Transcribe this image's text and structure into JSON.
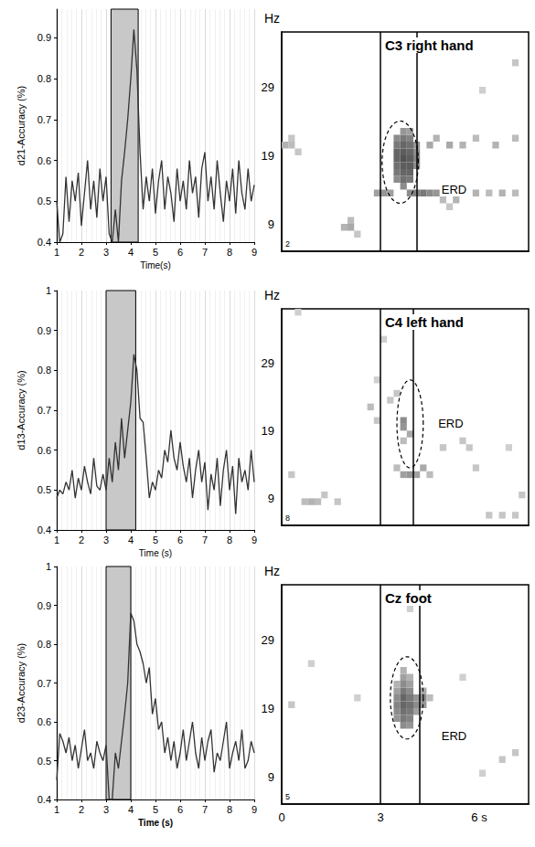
{
  "chart_data": [
    {
      "type": "line",
      "y_axis_label": "d21-Accuracy (%)",
      "x_axis_label": "Time(s)",
      "color": "#333333",
      "x": [
        1,
        1.125,
        1.25,
        1.375,
        1.5,
        1.625,
        1.75,
        1.875,
        2,
        2.125,
        2.25,
        2.375,
        2.5,
        2.625,
        2.75,
        2.875,
        3,
        3.125,
        3.25,
        3.375,
        3.5,
        3.625,
        3.75,
        3.875,
        4,
        4.125,
        4.25,
        4.375,
        4.5,
        4.625,
        4.75,
        4.875,
        5,
        5.125,
        5.25,
        5.375,
        5.5,
        5.625,
        5.75,
        5.875,
        6,
        6.125,
        6.25,
        6.375,
        6.5,
        6.625,
        6.75,
        6.875,
        7,
        7.125,
        7.25,
        7.375,
        7.5,
        7.625,
        7.75,
        7.875,
        8,
        8.125,
        8.25,
        8.375,
        8.5,
        8.625,
        8.75,
        8.875,
        9
      ],
      "values": [
        0.5,
        0.4,
        0.42,
        0.56,
        0.45,
        0.55,
        0.5,
        0.57,
        0.44,
        0.52,
        0.6,
        0.48,
        0.55,
        0.46,
        0.58,
        0.5,
        0.56,
        0.42,
        0.4,
        0.48,
        0.4,
        0.55,
        0.62,
        0.7,
        0.8,
        0.92,
        0.82,
        0.62,
        0.48,
        0.56,
        0.5,
        0.58,
        0.47,
        0.55,
        0.6,
        0.48,
        0.56,
        0.52,
        0.45,
        0.58,
        0.5,
        0.55,
        0.48,
        0.6,
        0.52,
        0.56,
        0.46,
        0.58,
        0.62,
        0.5,
        0.56,
        0.48,
        0.6,
        0.52,
        0.45,
        0.55,
        0.5,
        0.58,
        0.47,
        0.6,
        0.52,
        0.48,
        0.58,
        0.5,
        0.54
      ],
      "xlim": [
        1,
        9
      ],
      "ylim": [
        0.4,
        0.97
      ],
      "xticks": [
        1,
        2,
        3,
        4,
        5,
        6,
        7,
        8,
        9
      ],
      "yticks": [
        0.4,
        0.5,
        0.6,
        0.7,
        0.8,
        0.9
      ],
      "grid": true,
      "shade": [
        3.2,
        4.3
      ]
    },
    {
      "type": "heatmap",
      "title": "C3 right hand",
      "corner_label": "2",
      "y_axis_label": "Hz",
      "color": "#404040",
      "xlim": [
        0,
        7.5
      ],
      "ylim": [
        5,
        37
      ],
      "yticks": [
        9,
        19,
        29
      ],
      "tick_labels": "y",
      "grid": false,
      "x_step": 0.2,
      "y_step": 1,
      "clim": [
        0,
        1
      ],
      "cue_lines": [
        3,
        4.1
      ],
      "annotation": {
        "text": "ERD",
        "x": 4.8,
        "y": 14,
        "ellipse": {
          "x": 3.6,
          "y": 18,
          "rx": 0.55,
          "ry": 6
        }
      },
      "cells": [
        [
          0,
          20,
          0.4
        ],
        [
          0.2,
          20,
          0.35
        ],
        [
          0.2,
          21,
          0.3
        ],
        [
          0.4,
          19,
          0.3
        ],
        [
          1.8,
          8,
          0.4
        ],
        [
          2.0,
          8,
          0.45
        ],
        [
          2.0,
          9,
          0.35
        ],
        [
          2.2,
          7,
          0.3
        ],
        [
          2.8,
          13,
          0.5
        ],
        [
          3.0,
          13,
          0.55
        ],
        [
          3.2,
          13,
          0.5
        ],
        [
          3.4,
          15,
          0.6
        ],
        [
          3.4,
          16,
          0.7
        ],
        [
          3.4,
          17,
          0.75
        ],
        [
          3.4,
          18,
          0.8
        ],
        [
          3.4,
          19,
          0.8
        ],
        [
          3.4,
          20,
          0.7
        ],
        [
          3.4,
          21,
          0.6
        ],
        [
          3.6,
          14,
          0.6
        ],
        [
          3.6,
          15,
          0.75
        ],
        [
          3.6,
          16,
          0.8
        ],
        [
          3.6,
          17,
          0.85
        ],
        [
          3.6,
          18,
          0.9
        ],
        [
          3.6,
          19,
          0.85
        ],
        [
          3.6,
          20,
          0.8
        ],
        [
          3.6,
          21,
          0.7
        ],
        [
          3.6,
          22,
          0.55
        ],
        [
          3.8,
          15,
          0.7
        ],
        [
          3.8,
          16,
          0.8
        ],
        [
          3.8,
          17,
          0.85
        ],
        [
          3.8,
          18,
          0.85
        ],
        [
          3.8,
          19,
          0.8
        ],
        [
          3.8,
          20,
          0.75
        ],
        [
          3.8,
          21,
          0.65
        ],
        [
          3.8,
          22,
          0.5
        ],
        [
          4.0,
          17,
          0.6
        ],
        [
          4.0,
          18,
          0.65
        ],
        [
          4.0,
          19,
          0.6
        ],
        [
          4.0,
          20,
          0.55
        ],
        [
          3.8,
          13,
          0.6
        ],
        [
          4.0,
          13,
          0.65
        ],
        [
          4.2,
          13,
          0.7
        ],
        [
          4.4,
          13,
          0.6
        ],
        [
          4.6,
          13,
          0.55
        ],
        [
          4.8,
          13,
          0.5
        ],
        [
          5.0,
          13,
          0.45
        ],
        [
          5.2,
          12,
          0.4
        ],
        [
          5.4,
          13,
          0.45
        ],
        [
          5.8,
          13,
          0.4
        ],
        [
          6.2,
          13,
          0.35
        ],
        [
          6.6,
          13,
          0.4
        ],
        [
          7.0,
          13,
          0.35
        ],
        [
          4.4,
          20,
          0.45
        ],
        [
          4.6,
          21,
          0.4
        ],
        [
          5.0,
          20,
          0.45
        ],
        [
          5.4,
          20,
          0.4
        ],
        [
          5.8,
          21,
          0.35
        ],
        [
          6.4,
          20,
          0.4
        ],
        [
          7.0,
          21,
          0.35
        ],
        [
          5.0,
          11,
          0.3
        ],
        [
          4.8,
          12,
          0.35
        ],
        [
          6.0,
          28,
          0.25
        ],
        [
          7.0,
          32,
          0.3
        ]
      ]
    },
    {
      "type": "line",
      "y_axis_label": "d13-Accuracy (%)",
      "x_axis_label": "Time (s)",
      "color": "#333333",
      "x": [
        1,
        1.125,
        1.25,
        1.375,
        1.5,
        1.625,
        1.75,
        1.875,
        2,
        2.125,
        2.25,
        2.375,
        2.5,
        2.625,
        2.75,
        2.875,
        3,
        3.125,
        3.25,
        3.375,
        3.5,
        3.625,
        3.75,
        3.875,
        4,
        4.125,
        4.25,
        4.375,
        4.5,
        4.625,
        4.75,
        4.875,
        5,
        5.125,
        5.25,
        5.375,
        5.5,
        5.625,
        5.75,
        5.875,
        6,
        6.125,
        6.25,
        6.375,
        6.5,
        6.625,
        6.75,
        6.875,
        7,
        7.125,
        7.25,
        7.375,
        7.5,
        7.625,
        7.75,
        7.875,
        8,
        8.125,
        8.25,
        8.375,
        8.5,
        8.625,
        8.75,
        8.875,
        9
      ],
      "values": [
        0.48,
        0.5,
        0.49,
        0.52,
        0.5,
        0.55,
        0.48,
        0.53,
        0.5,
        0.56,
        0.52,
        0.49,
        0.58,
        0.51,
        0.5,
        0.54,
        0.5,
        0.58,
        0.52,
        0.62,
        0.55,
        0.68,
        0.58,
        0.65,
        0.72,
        0.84,
        0.8,
        0.68,
        0.67,
        0.58,
        0.48,
        0.52,
        0.5,
        0.55,
        0.53,
        0.6,
        0.57,
        0.65,
        0.58,
        0.55,
        0.62,
        0.56,
        0.52,
        0.58,
        0.48,
        0.55,
        0.6,
        0.52,
        0.57,
        0.45,
        0.54,
        0.5,
        0.58,
        0.46,
        0.55,
        0.6,
        0.5,
        0.56,
        0.44,
        0.58,
        0.52,
        0.55,
        0.5,
        0.6,
        0.52
      ],
      "xlim": [
        1,
        9
      ],
      "ylim": [
        0.4,
        1
      ],
      "xticks": [
        1,
        2,
        3,
        4,
        5,
        6,
        7,
        8,
        9
      ],
      "yticks": [
        0.4,
        0.5,
        0.6,
        0.7,
        0.8,
        0.9,
        1
      ],
      "grid": true,
      "shade": [
        3,
        4.2
      ]
    },
    {
      "type": "heatmap",
      "title": "C4 left hand",
      "corner_label": "8",
      "y_axis_label": "Hz",
      "color": "#404040",
      "xlim": [
        0,
        7.5
      ],
      "ylim": [
        5,
        37
      ],
      "yticks": [
        9,
        19,
        29
      ],
      "tick_labels": "y",
      "grid": false,
      "x_step": 0.2,
      "y_step": 1,
      "clim": [
        0,
        1
      ],
      "cue_lines": [
        3,
        4.0
      ],
      "annotation": {
        "text": "ERD",
        "x": 4.7,
        "y": 20,
        "ellipse": {
          "x": 3.9,
          "y": 20,
          "rx": 0.4,
          "ry": 6.5
        }
      },
      "cells": [
        [
          0.2,
          12,
          0.3
        ],
        [
          0.6,
          8,
          0.35
        ],
        [
          0.8,
          8,
          0.4
        ],
        [
          1.0,
          8,
          0.35
        ],
        [
          1.2,
          9,
          0.3
        ],
        [
          1.6,
          8,
          0.3
        ],
        [
          2.6,
          22,
          0.35
        ],
        [
          2.8,
          20,
          0.3
        ],
        [
          2.8,
          26,
          0.25
        ],
        [
          3.2,
          23,
          0.3
        ],
        [
          3.4,
          24,
          0.3
        ],
        [
          3.6,
          19,
          0.55
        ],
        [
          3.6,
          20,
          0.6
        ],
        [
          3.8,
          18,
          0.45
        ],
        [
          3.6,
          17,
          0.35
        ],
        [
          3.4,
          13,
          0.35
        ],
        [
          3.6,
          12,
          0.5
        ],
        [
          3.8,
          12,
          0.55
        ],
        [
          4.0,
          12,
          0.5
        ],
        [
          4.2,
          13,
          0.45
        ],
        [
          4.4,
          12,
          0.35
        ],
        [
          4.8,
          16,
          0.3
        ],
        [
          5.4,
          17,
          0.3
        ],
        [
          5.6,
          16,
          0.3
        ],
        [
          5.8,
          13,
          0.3
        ],
        [
          6.2,
          6,
          0.3
        ],
        [
          6.6,
          6,
          0.3
        ],
        [
          7.0,
          6,
          0.3
        ],
        [
          6.8,
          16,
          0.25
        ],
        [
          7.2,
          9,
          0.3
        ],
        [
          0.4,
          36,
          0.25
        ],
        [
          3.0,
          32,
          0.25
        ]
      ]
    },
    {
      "type": "line",
      "y_axis_label": "d23-Accuracy (%)",
      "x_axis_label": "Time (s)",
      "color": "#333333",
      "x": [
        1,
        1.125,
        1.25,
        1.375,
        1.5,
        1.625,
        1.75,
        1.875,
        2,
        2.125,
        2.25,
        2.375,
        2.5,
        2.625,
        2.75,
        2.875,
        3,
        3.125,
        3.25,
        3.375,
        3.5,
        3.625,
        3.75,
        3.875,
        4,
        4.125,
        4.25,
        4.375,
        4.5,
        4.625,
        4.75,
        4.875,
        5,
        5.125,
        5.25,
        5.375,
        5.5,
        5.625,
        5.75,
        5.875,
        6,
        6.125,
        6.25,
        6.375,
        6.5,
        6.625,
        6.75,
        6.875,
        7,
        7.125,
        7.25,
        7.375,
        7.5,
        7.625,
        7.75,
        7.875,
        8,
        8.125,
        8.25,
        8.375,
        8.5,
        8.625,
        8.75,
        8.875,
        9
      ],
      "values": [
        0.45,
        0.57,
        0.55,
        0.52,
        0.56,
        0.5,
        0.54,
        0.48,
        0.53,
        0.58,
        0.5,
        0.52,
        0.48,
        0.55,
        0.52,
        0.5,
        0.54,
        0.4,
        0.4,
        0.52,
        0.48,
        0.55,
        0.62,
        0.7,
        0.88,
        0.86,
        0.8,
        0.78,
        0.75,
        0.7,
        0.74,
        0.62,
        0.66,
        0.58,
        0.6,
        0.52,
        0.56,
        0.5,
        0.55,
        0.48,
        0.52,
        0.58,
        0.5,
        0.55,
        0.6,
        0.52,
        0.48,
        0.56,
        0.5,
        0.55,
        0.58,
        0.47,
        0.52,
        0.5,
        0.55,
        0.6,
        0.48,
        0.52,
        0.55,
        0.5,
        0.58,
        0.48,
        0.5,
        0.55,
        0.52
      ],
      "xlim": [
        1,
        9
      ],
      "ylim": [
        0.4,
        1
      ],
      "xticks": [
        1,
        2,
        3,
        4,
        5,
        6,
        7,
        8,
        9
      ],
      "yticks": [
        0.4,
        0.5,
        0.6,
        0.7,
        0.8,
        0.9,
        1
      ],
      "grid": true,
      "shade": [
        3,
        4
      ]
    },
    {
      "type": "heatmap",
      "title": "Cz foot",
      "corner_label": "5",
      "y_axis_label": "Hz",
      "color": "#404040",
      "xlim": [
        0,
        7.5
      ],
      "ylim": [
        5,
        37
      ],
      "xticks": [
        0,
        3,
        {
          "value": 6,
          "label": "6 s"
        }
      ],
      "yticks": [
        9,
        19,
        29
      ],
      "grid": false,
      "x_step": 0.2,
      "y_step": 1,
      "clim": [
        0,
        1
      ],
      "cue_lines": [
        3,
        4.2
      ],
      "annotation": {
        "text": "ERD",
        "x": 4.8,
        "y": 15,
        "ellipse": {
          "x": 3.8,
          "y": 20.5,
          "rx": 0.5,
          "ry": 6
        }
      },
      "cells": [
        [
          0.2,
          19,
          0.3
        ],
        [
          0.8,
          25,
          0.25
        ],
        [
          3.4,
          17,
          0.55
        ],
        [
          3.4,
          18,
          0.6
        ],
        [
          3.4,
          19,
          0.65
        ],
        [
          3.4,
          20,
          0.6
        ],
        [
          3.4,
          21,
          0.5
        ],
        [
          3.4,
          22,
          0.4
        ],
        [
          3.6,
          16,
          0.6
        ],
        [
          3.6,
          17,
          0.7
        ],
        [
          3.6,
          18,
          0.75
        ],
        [
          3.6,
          19,
          0.8
        ],
        [
          3.6,
          20,
          0.8
        ],
        [
          3.6,
          21,
          0.7
        ],
        [
          3.6,
          22,
          0.6
        ],
        [
          3.6,
          23,
          0.5
        ],
        [
          3.6,
          24,
          0.4
        ],
        [
          3.8,
          16,
          0.55
        ],
        [
          3.8,
          17,
          0.65
        ],
        [
          3.8,
          18,
          0.7
        ],
        [
          3.8,
          19,
          0.75
        ],
        [
          3.8,
          20,
          0.7
        ],
        [
          3.8,
          21,
          0.6
        ],
        [
          3.8,
          22,
          0.5
        ],
        [
          3.8,
          23,
          0.4
        ],
        [
          4.0,
          18,
          0.5
        ],
        [
          4.0,
          19,
          0.6
        ],
        [
          4.0,
          20,
          0.55
        ],
        [
          4.2,
          19,
          0.55
        ],
        [
          4.2,
          20,
          0.6
        ],
        [
          4.2,
          21,
          0.45
        ],
        [
          4.4,
          20,
          0.35
        ],
        [
          3.8,
          33,
          0.25
        ],
        [
          5.4,
          23,
          0.25
        ],
        [
          6.6,
          11,
          0.3
        ],
        [
          7.0,
          12,
          0.3
        ],
        [
          2.2,
          20,
          0.25
        ],
        [
          6.0,
          9,
          0.25
        ]
      ]
    }
  ]
}
